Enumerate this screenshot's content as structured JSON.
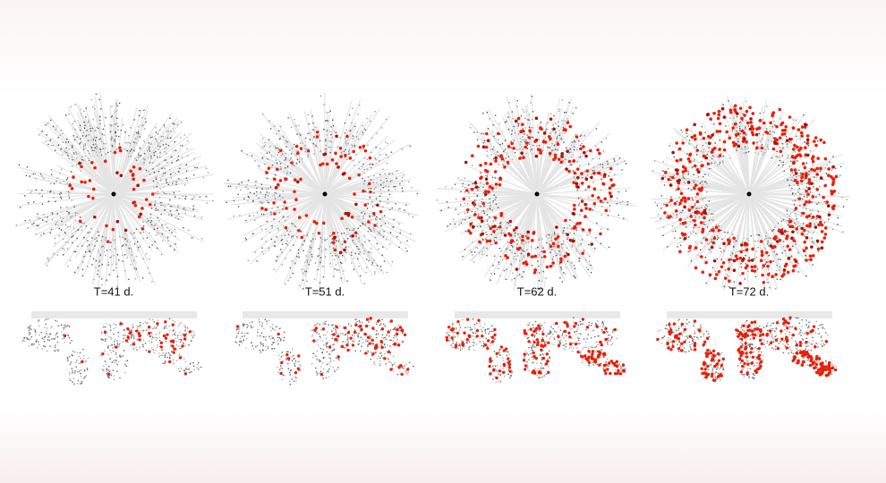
{
  "panels": [
    {
      "label": "T=41 d."
    },
    {
      "label": "T=51 d."
    },
    {
      "label": "T=62 d."
    },
    {
      "label": "T=72 d."
    }
  ]
}
